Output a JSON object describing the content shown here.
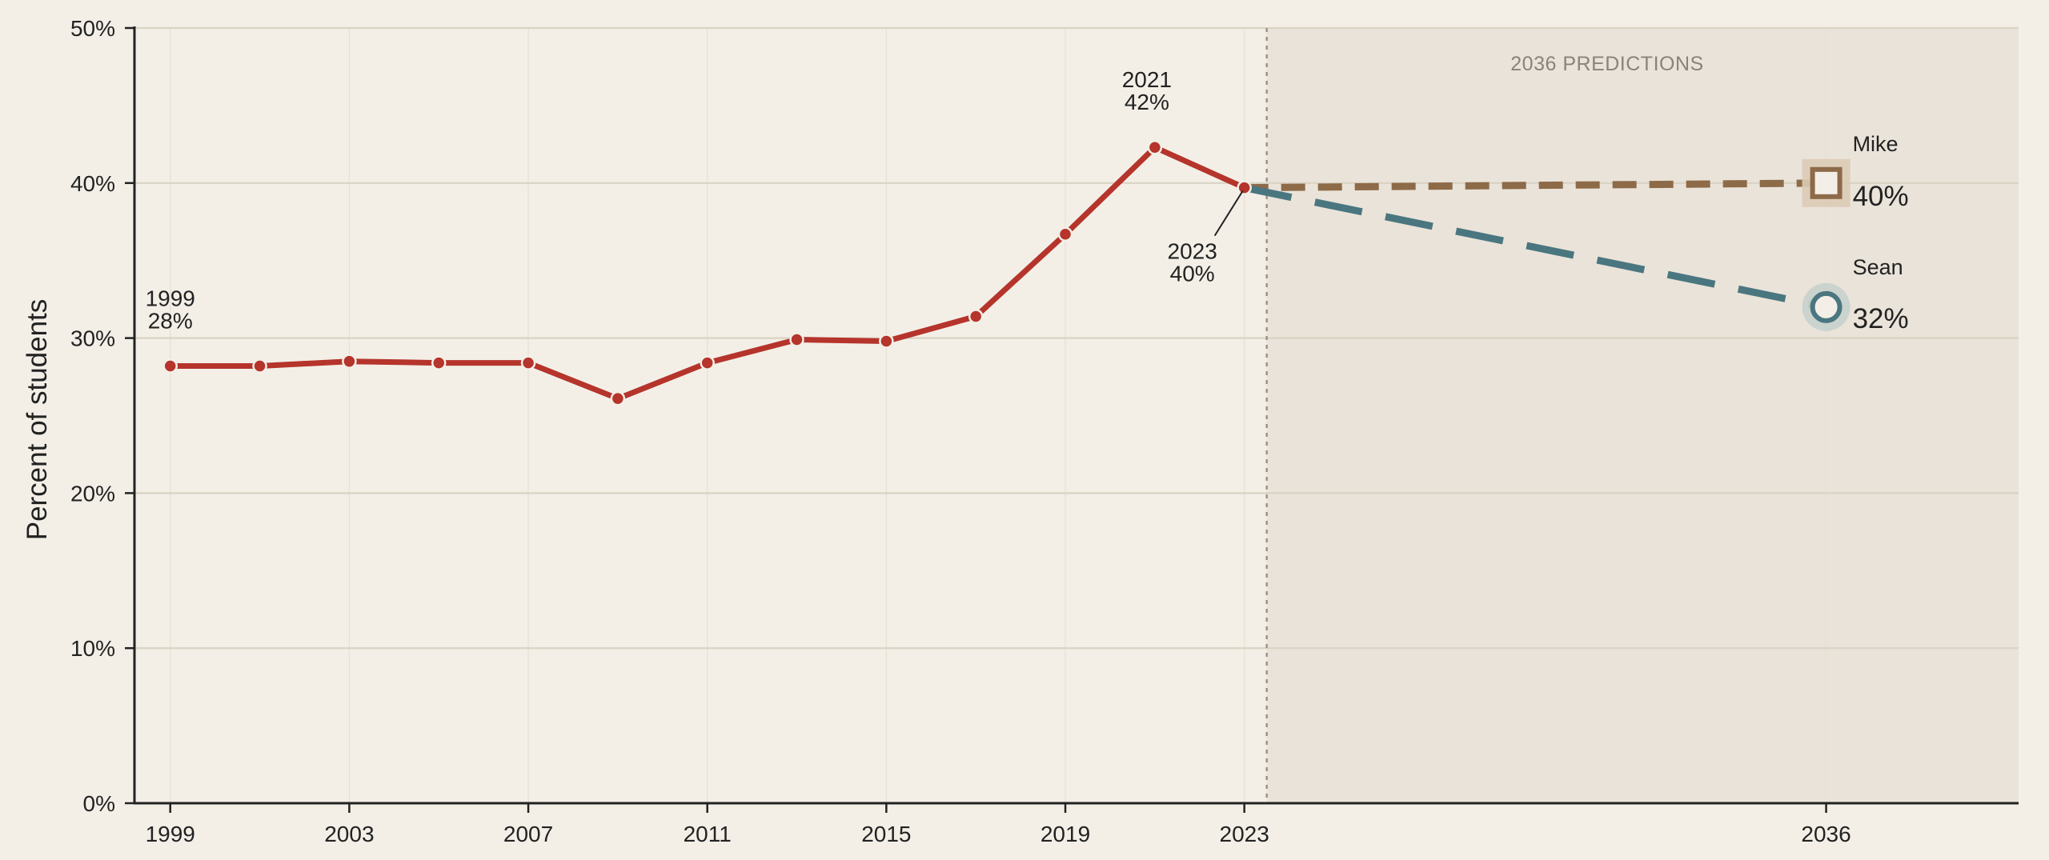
{
  "chart_data": {
    "type": "line",
    "ylabel": "Percent of students",
    "xlabel": "",
    "title": "",
    "ylim": [
      0,
      50
    ],
    "xlim": [
      1998.2,
      2040.3
    ],
    "y_ticks": [
      0,
      10,
      20,
      30,
      40,
      50
    ],
    "y_tick_labels": [
      "0%",
      "10%",
      "20%",
      "30%",
      "40%",
      "50%"
    ],
    "x_ticks": [
      1999,
      2003,
      2007,
      2011,
      2015,
      2019,
      2023,
      2036
    ],
    "x_tick_labels": [
      "1999",
      "2003",
      "2007",
      "2011",
      "2015",
      "2019",
      "2023",
      "2036"
    ],
    "grid": true,
    "prediction_region": {
      "start": 2023.5,
      "label": "2036 PREDICTIONS"
    },
    "series": [
      {
        "style": "solid",
        "color": "#b5342b",
        "points": [
          {
            "x": 1999,
            "y": 28.2
          },
          {
            "x": 2001,
            "y": 28.2
          },
          {
            "x": 2003,
            "y": 28.5
          },
          {
            "x": 2005,
            "y": 28.4
          },
          {
            "x": 2007,
            "y": 28.4
          },
          {
            "x": 2009,
            "y": 26.1
          },
          {
            "x": 2011,
            "y": 28.4
          },
          {
            "x": 2013,
            "y": 29.9
          },
          {
            "x": 2015,
            "y": 29.8
          },
          {
            "x": 2017,
            "y": 31.4
          },
          {
            "x": 2019,
            "y": 36.7
          },
          {
            "x": 2021,
            "y": 42.3
          },
          {
            "x": 2023,
            "y": 39.7
          }
        ]
      },
      {
        "name": "Mike",
        "style": "dashed",
        "color": "#8d6a48",
        "marker": "square",
        "points": [
          {
            "x": 2023,
            "y": 39.7
          },
          {
            "x": 2036,
            "y": 40
          }
        ],
        "end_label": "40%"
      },
      {
        "name": "Sean",
        "style": "dashed",
        "color": "#4a7680",
        "marker": "circle",
        "points": [
          {
            "x": 2023,
            "y": 39.7
          },
          {
            "x": 2036,
            "y": 32
          }
        ],
        "end_label": "32%"
      }
    ],
    "annotations": [
      {
        "year": "1999",
        "value": "28%",
        "x": 1999,
        "y": 28.2
      },
      {
        "year": "2021",
        "value": "42%",
        "x": 2021,
        "y": 42.3
      },
      {
        "year": "2023",
        "value": "40%",
        "x": 2023,
        "y": 39.7
      }
    ],
    "colors": {
      "background": "#f3efe7",
      "prediction_shade": "#eae3d9",
      "grid": "#d9d3c3",
      "axis": "#222222",
      "divider": "#9a948c"
    }
  }
}
